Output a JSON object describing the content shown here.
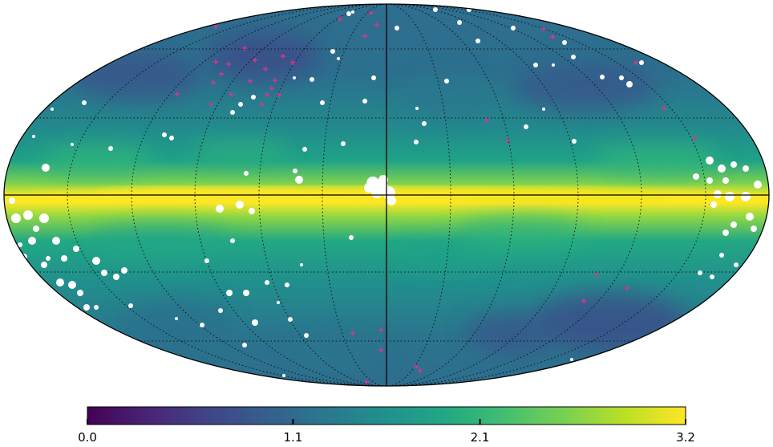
{
  "map": {
    "projection": "mollweide",
    "colormap": "viridis",
    "graticule": "dotted",
    "masked_sources_color": "#ffffff",
    "marker_color": "#e0338a",
    "marker_symbol": "+"
  },
  "colorbar": {
    "min": 0.0,
    "max": 3.2,
    "ticks": [
      {
        "value": 0.0,
        "label": "0.0"
      },
      {
        "value": 1.1,
        "label": "1.1"
      },
      {
        "value": 2.1,
        "label": "2.1"
      },
      {
        "value": 3.2,
        "label": "3.2"
      }
    ]
  }
}
